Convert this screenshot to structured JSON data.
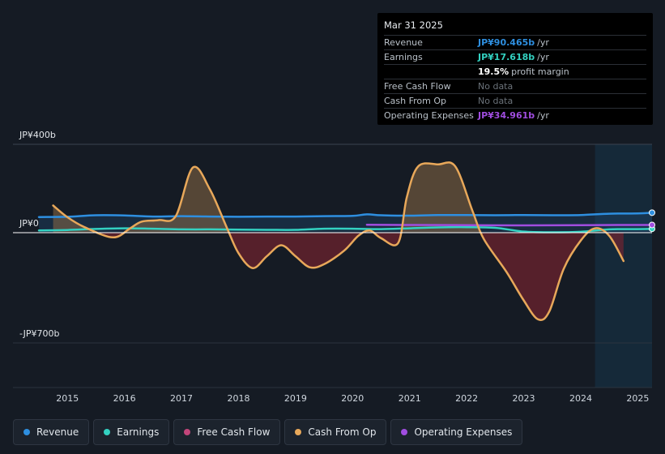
{
  "tooltip": {
    "date": "Mar 31 2025",
    "rows": [
      {
        "label": "Revenue",
        "value": "JP¥90.465b",
        "unit": "/yr",
        "color": "#2e8fe0"
      },
      {
        "label": "Earnings",
        "value": "JP¥17.618b",
        "unit": "/yr",
        "color": "#33d1c1"
      },
      {
        "label": "",
        "value": "19.5%",
        "unit": "profit margin",
        "color": "#ffffff"
      },
      {
        "label": "Free Cash Flow",
        "value": "No data",
        "unit": "",
        "color": "#6b727a"
      },
      {
        "label": "Cash From Op",
        "value": "No data",
        "unit": "",
        "color": "#6b727a"
      },
      {
        "label": "Operating Expenses",
        "value": "JP¥34.961b",
        "unit": "/yr",
        "color": "#a04de0"
      }
    ]
  },
  "legend": [
    {
      "label": "Revenue",
      "color": "#2e8fe0"
    },
    {
      "label": "Earnings",
      "color": "#33d1c1"
    },
    {
      "label": "Free Cash Flow",
      "color": "#c2457a"
    },
    {
      "label": "Cash From Op",
      "color": "#e8a85a"
    },
    {
      "label": "Operating Expenses",
      "color": "#a04de0"
    }
  ],
  "chart_data": {
    "type": "line",
    "ylim": [
      -700,
      400
    ],
    "y_labels": [
      {
        "value": 400,
        "text": "JP¥400b"
      },
      {
        "value": 0,
        "text": "JP¥0"
      },
      {
        "value": -700,
        "text": "-JP¥700b"
      }
    ],
    "x_ticks": [
      2015,
      2016,
      2017,
      2018,
      2019,
      2020,
      2021,
      2022,
      2023,
      2024,
      2025
    ],
    "xlim": [
      2014.5,
      2025.25
    ],
    "forecast_start": 2024.25,
    "series": [
      {
        "name": "Revenue",
        "color": "#2e8fe0",
        "points": [
          [
            2014.5,
            71
          ],
          [
            2015.0,
            72
          ],
          [
            2015.5,
            79
          ],
          [
            2016.0,
            78
          ],
          [
            2016.5,
            73
          ],
          [
            2017.0,
            75
          ],
          [
            2017.5,
            73
          ],
          [
            2018.0,
            72
          ],
          [
            2018.5,
            73
          ],
          [
            2019.0,
            73
          ],
          [
            2019.5,
            75
          ],
          [
            2020.0,
            76
          ],
          [
            2020.25,
            83
          ],
          [
            2020.5,
            79
          ],
          [
            2021.0,
            77
          ],
          [
            2021.5,
            80
          ],
          [
            2022.0,
            80
          ],
          [
            2022.5,
            79
          ],
          [
            2023.0,
            80
          ],
          [
            2023.5,
            79
          ],
          [
            2024.0,
            80
          ],
          [
            2024.5,
            86
          ],
          [
            2025.0,
            87
          ],
          [
            2025.25,
            90.465
          ]
        ]
      },
      {
        "name": "Earnings",
        "color": "#33d1c1",
        "points": [
          [
            2014.5,
            10
          ],
          [
            2015.0,
            12
          ],
          [
            2015.5,
            17
          ],
          [
            2016.0,
            20
          ],
          [
            2016.5,
            18
          ],
          [
            2017.0,
            15
          ],
          [
            2017.5,
            15
          ],
          [
            2018.0,
            14
          ],
          [
            2018.5,
            13
          ],
          [
            2019.0,
            13
          ],
          [
            2019.5,
            18
          ],
          [
            2020.0,
            18
          ],
          [
            2020.5,
            16
          ],
          [
            2021.0,
            20
          ],
          [
            2021.5,
            24
          ],
          [
            2022.0,
            25
          ],
          [
            2022.5,
            22
          ],
          [
            2023.0,
            5
          ],
          [
            2023.5,
            2
          ],
          [
            2024.0,
            4
          ],
          [
            2024.5,
            15
          ],
          [
            2025.0,
            16
          ],
          [
            2025.25,
            17.618
          ]
        ]
      },
      {
        "name": "Operating Expenses",
        "color": "#a04de0",
        "points": [
          [
            2020.25,
            36
          ],
          [
            2021.0,
            35
          ],
          [
            2022.0,
            34
          ],
          [
            2023.0,
            33
          ],
          [
            2024.0,
            34
          ],
          [
            2025.0,
            35
          ],
          [
            2025.25,
            34.961
          ]
        ]
      },
      {
        "name": "Cash From Op",
        "color": "#e8a85a",
        "points": [
          [
            2014.75,
            123
          ],
          [
            2015.0,
            70
          ],
          [
            2015.3,
            25
          ],
          [
            2015.8,
            -30
          ],
          [
            2016.1,
            20
          ],
          [
            2016.3,
            50
          ],
          [
            2016.6,
            57
          ],
          [
            2016.9,
            75
          ],
          [
            2017.2,
            295
          ],
          [
            2017.5,
            195
          ],
          [
            2017.8,
            20
          ],
          [
            2018.0,
            -130
          ],
          [
            2018.25,
            -225
          ],
          [
            2018.5,
            -148
          ],
          [
            2018.75,
            -80
          ],
          [
            2019.0,
            -150
          ],
          [
            2019.25,
            -220
          ],
          [
            2019.5,
            -200
          ],
          [
            2019.85,
            -115
          ],
          [
            2020.1,
            -20
          ],
          [
            2020.3,
            10
          ],
          [
            2020.5,
            -35
          ],
          [
            2020.8,
            -65
          ],
          [
            2020.95,
            160
          ],
          [
            2021.15,
            300
          ],
          [
            2021.5,
            309
          ],
          [
            2021.8,
            300
          ],
          [
            2022.1,
            100
          ],
          [
            2022.3,
            -40
          ],
          [
            2022.7,
            -250
          ],
          [
            2023.0,
            -430
          ],
          [
            2023.25,
            -550
          ],
          [
            2023.45,
            -500
          ],
          [
            2023.7,
            -230
          ],
          [
            2024.0,
            -50
          ],
          [
            2024.25,
            20
          ],
          [
            2024.5,
            -20
          ],
          [
            2024.75,
            -180
          ]
        ]
      }
    ]
  }
}
